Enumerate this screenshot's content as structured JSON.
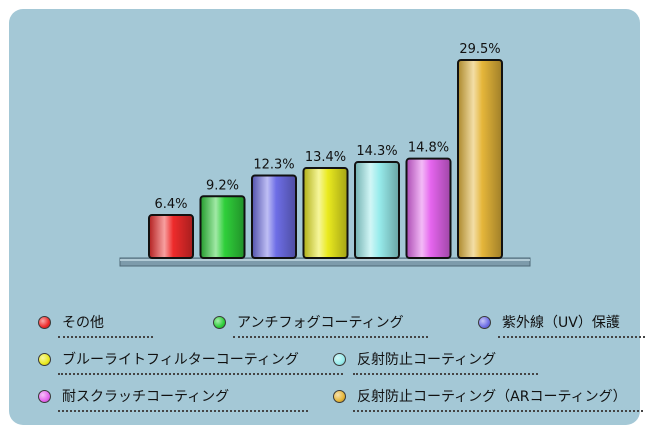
{
  "chart_data": {
    "type": "bar",
    "categories": [
      "その他",
      "アンチフォグコーティング",
      "紫外線（UV）保護",
      "ブルーライトフィルターコーティング",
      "反射防止コーティング",
      "耐スクラッチコーティング",
      "反射防止コーティング（ARコーティング）"
    ],
    "values": [
      6.4,
      9.2,
      12.3,
      13.4,
      14.3,
      14.8,
      29.5
    ],
    "value_labels": [
      "6.4%",
      "9.2%",
      "12.3%",
      "13.4%",
      "14.3%",
      "14.8%",
      "29.5%"
    ],
    "colors": [
      "#ee2b2b",
      "#2fcf3a",
      "#6e6ee6",
      "#eaea1f",
      "#98ecec",
      "#e565ee",
      "#e5b63a"
    ],
    "ylim": [
      0,
      29.5
    ],
    "grid": false,
    "legend_position": "bottom"
  },
  "legend": [
    {
      "label": "その他",
      "color": "#ee2b2b"
    },
    {
      "label": "アンチフォグコーティング",
      "color": "#2fcf3a"
    },
    {
      "label": "紫外線（UV）保護",
      "color": "#6e6ee6"
    },
    {
      "label": "ブルーライトフィルターコーティング",
      "color": "#eaea1f"
    },
    {
      "label": "反射防止コーティング",
      "color": "#98ecec"
    },
    {
      "label": "耐スクラッチコーティング",
      "color": "#e565ee"
    },
    {
      "label": "反射防止コーティング（ARコーティング）",
      "color": "#e5b63a"
    }
  ]
}
